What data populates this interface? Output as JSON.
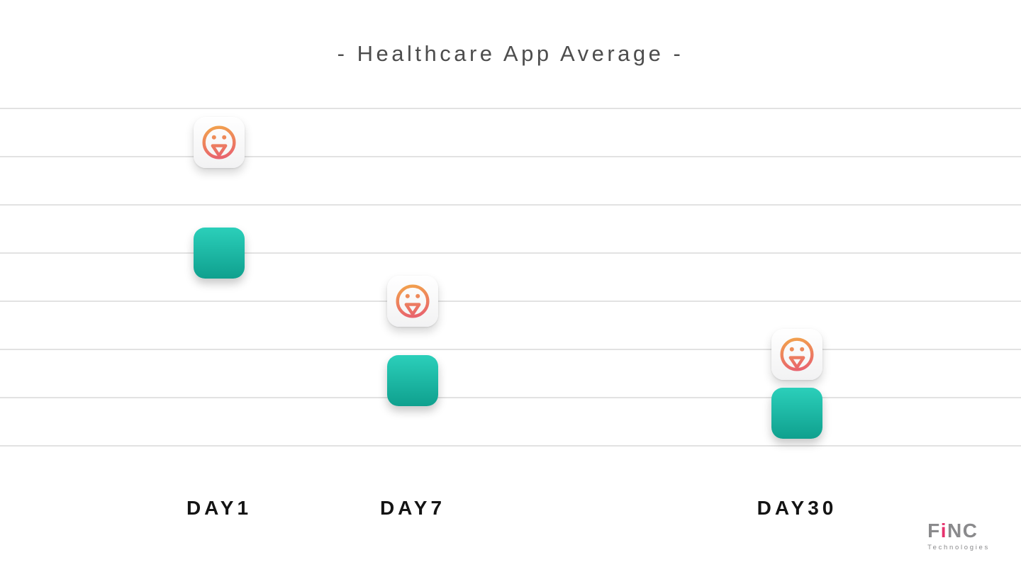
{
  "title": "- Healthcare App Average -",
  "chart_data": {
    "type": "scatter",
    "title": "- Healthcare App Average -",
    "categories": [
      "DAY1",
      "DAY7",
      "DAY30"
    ],
    "series": [
      {
        "name": "Smiley app icon (FiNC app)",
        "icon": "finc-smiley-app-icon",
        "values": [
          63,
          30,
          19
        ]
      },
      {
        "name": "Teal app icon (healthcare app average)",
        "icon": "teal-app-icon",
        "values": [
          40,
          13.5,
          6.7
        ]
      }
    ],
    "xlabel": "",
    "ylabel": "",
    "ylim": [
      0,
      70
    ],
    "gridlines": [
      0,
      10,
      20,
      30,
      40,
      50,
      60,
      70
    ],
    "grid": true,
    "y_tick_labels_visible": false,
    "legend_position": "none",
    "values_estimated": true
  },
  "colors": {
    "background": "#ffffff",
    "gridline": "#e2e2e2",
    "title_text": "#4d4d4d",
    "axis_label_text": "#141414",
    "teal_top": "#2bcfba",
    "teal_bottom": "#0fa08e",
    "smiley_gradient_top": "#f2a24c",
    "smiley_gradient_bottom": "#e75b72",
    "logo_gray": "#8a8a8c",
    "logo_pink": "#e5326d"
  },
  "logo": {
    "prefix": "F",
    "accent": "i",
    "suffix": "NC",
    "subtitle": "Technologies"
  }
}
